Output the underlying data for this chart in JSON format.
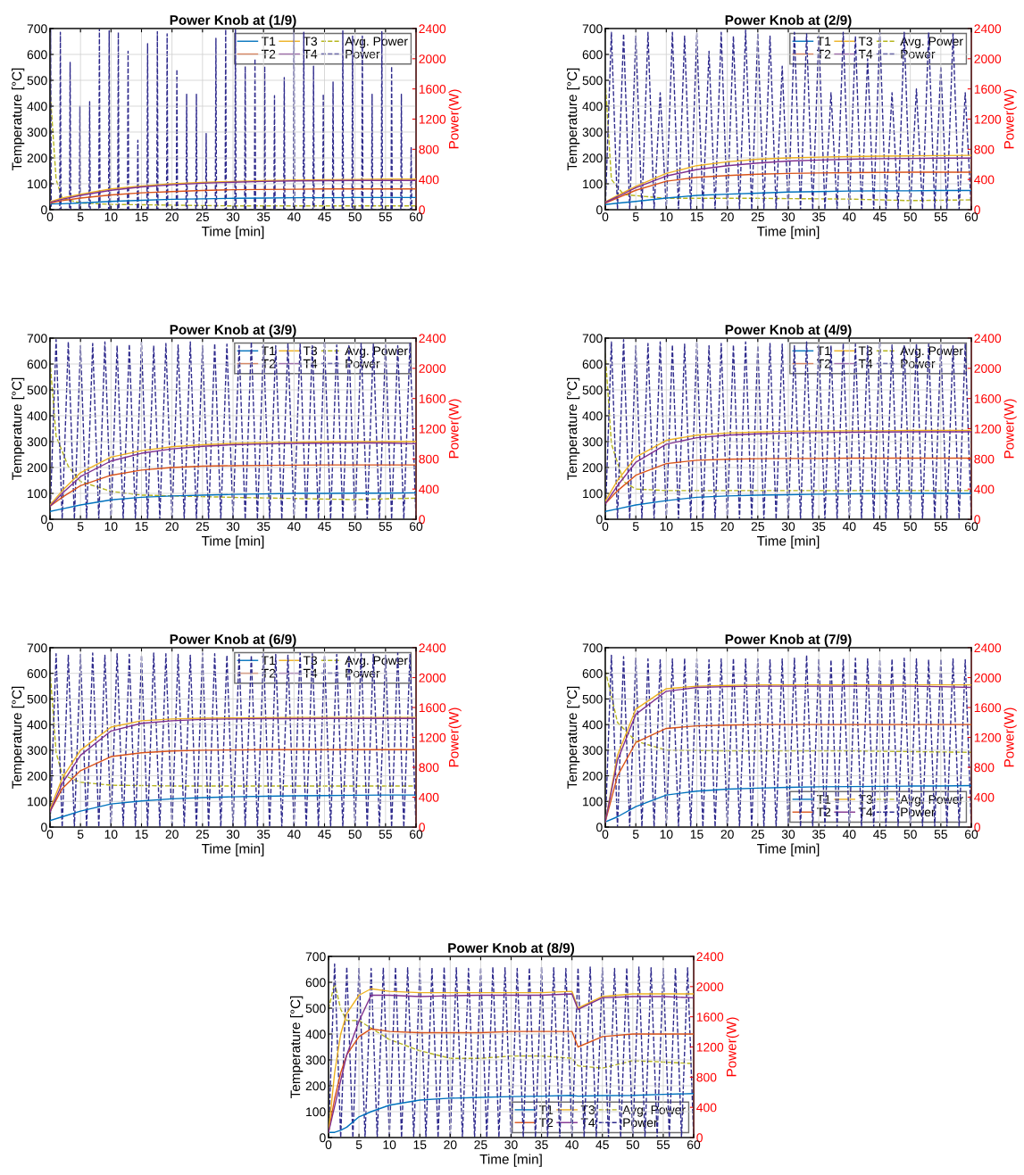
{
  "chart_data": [
    {
      "type": "line",
      "title": "Power Knob at (1/9)",
      "xlabel": "Time [min]",
      "ylabel": "Temperature [°C]",
      "y2label": "Power(W)",
      "xlim": [
        0,
        60
      ],
      "xticks": [
        0,
        5,
        10,
        15,
        20,
        25,
        30,
        35,
        40,
        45,
        50,
        55,
        60
      ],
      "ylim": [
        0,
        700
      ],
      "yticks": [
        0,
        100,
        200,
        300,
        400,
        500,
        600,
        700
      ],
      "y2lim": [
        0,
        2400
      ],
      "y2ticks": [
        0,
        400,
        800,
        1200,
        1600,
        2000,
        2400
      ],
      "grid": true,
      "legend": "top right",
      "x": [
        0,
        2,
        5,
        10,
        15,
        20,
        25,
        30,
        35,
        40,
        45,
        50,
        55,
        60
      ],
      "series": [
        {
          "name": "T1",
          "color": "#0072bd",
          "line_style": "solid",
          "values": [
            22,
            23,
            26,
            32,
            36,
            40,
            42,
            44,
            45,
            46,
            46,
            47,
            47,
            47
          ]
        },
        {
          "name": "T2",
          "color": "#d95319",
          "line_style": "solid",
          "values": [
            25,
            35,
            45,
            57,
            65,
            70,
            74,
            77,
            78,
            79,
            80,
            80,
            80,
            80
          ]
        },
        {
          "name": "T3",
          "color": "#edb120",
          "line_style": "solid",
          "values": [
            30,
            45,
            60,
            80,
            92,
            100,
            105,
            109,
            112,
            114,
            116,
            117,
            118,
            118
          ]
        },
        {
          "name": "T4",
          "color": "#7e2f8e",
          "line_style": "solid",
          "values": [
            28,
            40,
            55,
            75,
            88,
            96,
            102,
            106,
            109,
            111,
            112,
            113,
            113,
            113
          ]
        },
        {
          "name": "Avg. Power",
          "color": "#b5b51d",
          "line_style": "dashed",
          "axis": "y2",
          "x": [
            0,
            1,
            2,
            5,
            10,
            20,
            30,
            40,
            50,
            60
          ],
          "values": [
            1600,
            400,
            150,
            90,
            70,
            60,
            50,
            50,
            50,
            50
          ]
        },
        {
          "name": "Power",
          "color": "#2e2a8c",
          "line_style": "dashed",
          "axis": "y2",
          "x": [
            0,
            0.1,
            0.2,
            1.6,
            1.7,
            1.8,
            3.2,
            3.3,
            3.4,
            4.8,
            4.9,
            5,
            6.4,
            6.5,
            6.6,
            8,
            8.1,
            8.2,
            9.6,
            9.7,
            9.8,
            11.1,
            11.2,
            11.3,
            12.7,
            12.8,
            12.9,
            14.3,
            14.4,
            14.5,
            15.9,
            16,
            16.1,
            17.5,
            17.6,
            17.7,
            19.1,
            19.2,
            19.3,
            20.7,
            20.8,
            20.9,
            22.3,
            22.4,
            22.5,
            23.9,
            24,
            24.1,
            25.5,
            25.6,
            25.7,
            27.1,
            27.2,
            27.3,
            28.7,
            28.8,
            28.9,
            30.3,
            30.4,
            30.5,
            31.9,
            32,
            32.1,
            33.5,
            33.6,
            33.7,
            35.1,
            35.2,
            35.3,
            36.7,
            36.8,
            36.9,
            38.3,
            38.4,
            38.5,
            39.9,
            40,
            40.1,
            41.5,
            41.6,
            41.7,
            43.1,
            43.2,
            43.3,
            44.7,
            44.8,
            44.9,
            46.3,
            46.4,
            46.5,
            47.9,
            48,
            48.1,
            49.5,
            49.6,
            49.7,
            51.1,
            51.2,
            51.3,
            52.7,
            52.8,
            52.9,
            54.3,
            54.4,
            54.5,
            55.9,
            56,
            56.1,
            57.5,
            57.6,
            57.7,
            59.1,
            59.2,
            59.3
          ],
          "values": [
            0,
            2400,
            0,
            0,
            2350,
            0,
            0,
            1950,
            0,
            0,
            1370,
            0,
            0,
            1430,
            0,
            0,
            2400,
            0,
            0,
            2370,
            0,
            0,
            2350,
            0,
            0,
            2100,
            0,
            0,
            920,
            0,
            0,
            2200,
            0,
            0,
            2360,
            0,
            0,
            2330,
            0,
            0,
            1860,
            0,
            0,
            1530,
            0,
            0,
            1530,
            0,
            0,
            1010,
            0,
            0,
            2270,
            0,
            0,
            2390,
            0,
            0,
            2390,
            0,
            0,
            1900,
            0,
            0,
            2000,
            0,
            0,
            1900,
            0,
            0,
            1510,
            0,
            0,
            1750,
            0,
            0,
            2400,
            0,
            0,
            2350,
            0,
            0,
            1900,
            0,
            0,
            1530,
            0,
            0,
            1690,
            0,
            0,
            2370,
            0,
            0,
            2300,
            0,
            0,
            2300,
            0,
            0,
            1530,
            0,
            0,
            2360,
            0,
            0,
            1900,
            0,
            0,
            1530,
            0,
            0,
            830,
            0
          ]
        }
      ]
    },
    {
      "type": "line",
      "title": "Power Knob at (2/9)",
      "xlabel": "Time [min]",
      "ylabel": "Temperature [°C]",
      "y2label": "Power(W)",
      "xlim": [
        0,
        60
      ],
      "xticks": [
        0,
        5,
        10,
        15,
        20,
        25,
        30,
        35,
        40,
        45,
        50,
        55,
        60
      ],
      "ylim": [
        0,
        700
      ],
      "yticks": [
        0,
        100,
        200,
        300,
        400,
        500,
        600,
        700
      ],
      "y2lim": [
        0,
        2400
      ],
      "y2ticks": [
        0,
        400,
        800,
        1200,
        1600,
        2000,
        2400
      ],
      "grid": true,
      "legend": "top right",
      "x": [
        0,
        2,
        5,
        10,
        15,
        20,
        25,
        30,
        35,
        40,
        45,
        50,
        55,
        60
      ],
      "series": [
        {
          "name": "T1",
          "color": "#0072bd",
          "line_style": "solid",
          "values": [
            20,
            25,
            32,
            45,
            55,
            60,
            64,
            68,
            70,
            72,
            73,
            73,
            74,
            74
          ]
        },
        {
          "name": "T2",
          "color": "#d95319",
          "line_style": "solid",
          "values": [
            25,
            45,
            75,
            110,
            125,
            132,
            137,
            140,
            142,
            143,
            144,
            145,
            145,
            145
          ]
        },
        {
          "name": "T3",
          "color": "#edb120",
          "line_style": "solid",
          "values": [
            30,
            55,
            90,
            140,
            170,
            185,
            195,
            200,
            203,
            205,
            207,
            208,
            209,
            210
          ]
        },
        {
          "name": "T4",
          "color": "#7e2f8e",
          "line_style": "solid",
          "values": [
            28,
            50,
            85,
            130,
            155,
            170,
            180,
            188,
            192,
            195,
            197,
            198,
            199,
            199
          ]
        },
        {
          "name": "Avg. Power",
          "color": "#b5b51d",
          "line_style": "dashed",
          "axis": "y2",
          "x": [
            0,
            1,
            3,
            10,
            25,
            40,
            50,
            60
          ],
          "values": [
            1700,
            400,
            200,
            150,
            150,
            140,
            120,
            130
          ]
        },
        {
          "name": "Power",
          "color": "#2e2a8c",
          "line_style": "dashed",
          "axis": "y2",
          "x": [
            0,
            1,
            2,
            3,
            4,
            5,
            6,
            7,
            8,
            9,
            10,
            11,
            12,
            13,
            14,
            15,
            16,
            17,
            18,
            19,
            20,
            21,
            22,
            23,
            24,
            25,
            26,
            27,
            28,
            29,
            30,
            31,
            32,
            33,
            34,
            35,
            36,
            37,
            38,
            39,
            40,
            41,
            42,
            43,
            44,
            45,
            46,
            47,
            48,
            49,
            50,
            51,
            52,
            53,
            54,
            55,
            56,
            57,
            58,
            59,
            60
          ],
          "values": [
            0,
            2350,
            0,
            2330,
            0,
            2300,
            0,
            2350,
            0,
            1550,
            0,
            2350,
            0,
            2300,
            0,
            2340,
            0,
            2100,
            0,
            2350,
            0,
            2300,
            0,
            2380,
            0,
            2340,
            0,
            2300,
            0,
            1900,
            0,
            2350,
            0,
            2330,
            0,
            2300,
            0,
            1550,
            0,
            2350,
            0,
            2300,
            0,
            2000,
            0,
            2350,
            0,
            1550,
            0,
            2350,
            0,
            1600,
            0,
            2350,
            0,
            1900,
            0,
            2330,
            0,
            1550,
            0
          ]
        }
      ]
    },
    {
      "type": "line",
      "title": "Power Knob at (3/9)",
      "xlabel": "Time [min]",
      "ylabel": "Temperature [°C]",
      "y2label": "Power(W)",
      "xlim": [
        0,
        60
      ],
      "xticks": [
        0,
        5,
        10,
        15,
        20,
        25,
        30,
        35,
        40,
        45,
        50,
        55,
        60
      ],
      "ylim": [
        0,
        700
      ],
      "yticks": [
        0,
        100,
        200,
        300,
        400,
        500,
        600,
        700
      ],
      "y2lim": [
        0,
        2400
      ],
      "y2ticks": [
        0,
        400,
        800,
        1200,
        1600,
        2000,
        2400
      ],
      "grid": true,
      "legend": "top right",
      "x": [
        0,
        2,
        5,
        10,
        15,
        20,
        25,
        30,
        35,
        40,
        45,
        50,
        55,
        60
      ],
      "series": [
        {
          "name": "T1",
          "color": "#0072bd",
          "line_style": "solid",
          "values": [
            30,
            40,
            55,
            75,
            85,
            90,
            93,
            96,
            98,
            100,
            100,
            101,
            101,
            102
          ]
        },
        {
          "name": "T2",
          "color": "#d95319",
          "line_style": "solid",
          "values": [
            50,
            85,
            130,
            170,
            190,
            200,
            205,
            207,
            208,
            209,
            210,
            210,
            210,
            210
          ]
        },
        {
          "name": "T3",
          "color": "#edb120",
          "line_style": "solid",
          "values": [
            55,
            110,
            180,
            240,
            265,
            280,
            288,
            293,
            296,
            298,
            299,
            300,
            300,
            300
          ]
        },
        {
          "name": "T4",
          "color": "#7e2f8e",
          "line_style": "solid",
          "values": [
            50,
            100,
            165,
            225,
            255,
            272,
            282,
            288,
            291,
            293,
            294,
            295,
            295,
            292
          ]
        },
        {
          "name": "Avg. Power",
          "color": "#b5b51d",
          "line_style": "dashed",
          "axis": "y2",
          "x": [
            0,
            1,
            3,
            5,
            10,
            15,
            30,
            50,
            60
          ],
          "values": [
            2100,
            1100,
            700,
            500,
            370,
            320,
            290,
            260,
            280
          ]
        },
        {
          "name": "Power",
          "color": "#2e2a8c",
          "line_style": "dashed",
          "axis": "y2",
          "x": [
            0,
            1,
            2,
            3,
            4,
            5,
            6,
            7,
            8,
            9,
            10,
            11,
            12,
            13,
            14,
            15,
            16,
            17,
            18,
            19,
            20,
            21,
            22,
            23,
            24,
            25,
            26,
            27,
            28,
            29,
            30,
            31,
            32,
            33,
            34,
            35,
            36,
            37,
            38,
            39,
            40,
            41,
            42,
            43,
            44,
            45,
            46,
            47,
            48,
            49,
            50,
            51,
            52,
            53,
            54,
            55,
            56,
            57,
            58,
            59,
            60
          ],
          "values": [
            0,
            2380,
            0,
            2350,
            0,
            2300,
            0,
            2330,
            0,
            2350,
            0,
            2300,
            0,
            2320,
            0,
            2350,
            0,
            2300,
            0,
            2330,
            0,
            2310,
            0,
            2350,
            0,
            2300,
            0,
            2330,
            0,
            2320,
            0,
            2300,
            0,
            2350,
            0,
            2310,
            0,
            2300,
            0,
            2330,
            0,
            2320,
            0,
            2300,
            0,
            2350,
            0,
            2310,
            0,
            2300,
            0,
            2330,
            0,
            2320,
            0,
            2310,
            0,
            2300,
            0,
            2330,
            0
          ]
        }
      ]
    },
    {
      "type": "line",
      "title": "Power Knob at (4/9)",
      "xlabel": "Time [min]",
      "ylabel": "Temperature [°C]",
      "y2label": "Power(W)",
      "xlim": [
        0,
        60
      ],
      "xticks": [
        0,
        5,
        10,
        15,
        20,
        25,
        30,
        35,
        40,
        45,
        50,
        55,
        60
      ],
      "ylim": [
        0,
        700
      ],
      "yticks": [
        0,
        100,
        200,
        300,
        400,
        500,
        600,
        700
      ],
      "y2lim": [
        0,
        2400
      ],
      "y2ticks": [
        0,
        400,
        800,
        1200,
        1600,
        2000,
        2400
      ],
      "grid": true,
      "legend": "top right",
      "x": [
        0,
        2,
        5,
        10,
        15,
        20,
        25,
        30,
        35,
        40,
        45,
        50,
        55,
        60
      ],
      "series": [
        {
          "name": "T1",
          "color": "#0072bd",
          "line_style": "solid",
          "values": [
            30,
            40,
            55,
            72,
            85,
            90,
            93,
            95,
            97,
            98,
            99,
            100,
            100,
            100
          ]
        },
        {
          "name": "T2",
          "color": "#d95319",
          "line_style": "solid",
          "values": [
            60,
            110,
            170,
            215,
            228,
            232,
            234,
            235,
            235,
            236,
            236,
            236,
            236,
            236
          ]
        },
        {
          "name": "T3",
          "color": "#edb120",
          "line_style": "solid",
          "values": [
            70,
            150,
            240,
            305,
            325,
            333,
            337,
            340,
            341,
            342,
            342,
            343,
            343,
            343
          ]
        },
        {
          "name": "T4",
          "color": "#7e2f8e",
          "line_style": "solid",
          "values": [
            60,
            130,
            220,
            290,
            315,
            325,
            330,
            333,
            335,
            336,
            337,
            338,
            338,
            338
          ]
        },
        {
          "name": "Avg. Power",
          "color": "#b5b51d",
          "line_style": "dashed",
          "axis": "y2",
          "x": [
            0,
            1,
            3,
            5,
            10,
            20,
            40,
            60
          ],
          "values": [
            2200,
            1000,
            500,
            400,
            380,
            380,
            380,
            380
          ]
        },
        {
          "name": "Power",
          "color": "#2e2a8c",
          "line_style": "dashed",
          "axis": "y2",
          "x": [
            0,
            1,
            2,
            3,
            4,
            5,
            6,
            7,
            8,
            9,
            10,
            11,
            12,
            13,
            14,
            15,
            16,
            17,
            18,
            19,
            20,
            21,
            22,
            23,
            24,
            25,
            26,
            27,
            28,
            29,
            30,
            31,
            32,
            33,
            34,
            35,
            36,
            37,
            38,
            39,
            40,
            41,
            42,
            43,
            44,
            45,
            46,
            47,
            48,
            49,
            50,
            51,
            52,
            53,
            54,
            55,
            56,
            57,
            58,
            59,
            60
          ],
          "values": [
            0,
            2350,
            0,
            2380,
            0,
            2300,
            0,
            2330,
            0,
            2350,
            0,
            2310,
            0,
            2320,
            0,
            2350,
            0,
            2300,
            0,
            2330,
            0,
            2310,
            0,
            2350,
            0,
            2300,
            0,
            2330,
            0,
            2320,
            0,
            2300,
            0,
            2350,
            0,
            2310,
            0,
            2300,
            0,
            2330,
            0,
            2320,
            0,
            2300,
            0,
            2350,
            0,
            2310,
            0,
            2300,
            0,
            2330,
            0,
            2320,
            0,
            2310,
            0,
            2300,
            0,
            2330,
            0
          ]
        }
      ]
    },
    {
      "type": "line",
      "title": "Power Knob at (6/9)",
      "xlabel": "Time [min]",
      "ylabel": "Temperature [°C]",
      "y2label": "Power(W)",
      "xlim": [
        0,
        60
      ],
      "xticks": [
        0,
        5,
        10,
        15,
        20,
        25,
        30,
        35,
        40,
        45,
        50,
        55,
        60
      ],
      "ylim": [
        0,
        700
      ],
      "yticks": [
        0,
        100,
        200,
        300,
        400,
        500,
        600,
        700
      ],
      "y2lim": [
        0,
        2400
      ],
      "y2ticks": [
        0,
        400,
        800,
        1200,
        1600,
        2000,
        2400
      ],
      "grid": true,
      "legend": "top right",
      "x": [
        0,
        2,
        5,
        10,
        15,
        20,
        25,
        30,
        35,
        40,
        45,
        50,
        55,
        60
      ],
      "series": [
        {
          "name": "T1",
          "color": "#0072bd",
          "line_style": "solid",
          "values": [
            25,
            40,
            62,
            90,
            102,
            110,
            115,
            118,
            120,
            122,
            123,
            124,
            125,
            125
          ]
        },
        {
          "name": "T2",
          "color": "#d95319",
          "line_style": "solid",
          "values": [
            60,
            150,
            220,
            275,
            290,
            297,
            300,
            301,
            302,
            302,
            302,
            302,
            302,
            302
          ]
        },
        {
          "name": "T3",
          "color": "#edb120",
          "line_style": "solid",
          "values": [
            70,
            190,
            300,
            390,
            415,
            422,
            425,
            426,
            427,
            428,
            428,
            428,
            428,
            428
          ]
        },
        {
          "name": "T4",
          "color": "#7e2f8e",
          "line_style": "solid",
          "values": [
            60,
            170,
            280,
            375,
            405,
            415,
            420,
            422,
            423,
            423,
            424,
            424,
            424,
            424
          ]
        },
        {
          "name": "Avg. Power",
          "color": "#b5b51d",
          "line_style": "dashed",
          "axis": "y2",
          "x": [
            0,
            1,
            2,
            5,
            10,
            20,
            40,
            60
          ],
          "values": [
            2100,
            1000,
            700,
            600,
            560,
            550,
            550,
            550
          ]
        },
        {
          "name": "Power",
          "color": "#2e2a8c",
          "line_style": "dashed",
          "axis": "y2",
          "x": [
            0,
            1,
            2,
            3,
            4,
            5,
            6,
            7,
            8,
            9,
            10,
            11,
            12,
            13,
            14,
            15,
            16,
            17,
            18,
            19,
            20,
            21,
            22,
            23,
            24,
            25,
            26,
            27,
            28,
            29,
            30,
            31,
            32,
            33,
            34,
            35,
            36,
            37,
            38,
            39,
            40,
            41,
            42,
            43,
            44,
            45,
            46,
            47,
            48,
            49,
            50,
            51,
            52,
            53,
            54,
            55,
            56,
            57,
            58,
            59,
            60
          ],
          "values": [
            0,
            2320,
            0,
            2300,
            0,
            2310,
            0,
            2330,
            0,
            2300,
            0,
            2320,
            0,
            2310,
            0,
            2300,
            0,
            2330,
            0,
            2320,
            0,
            2310,
            0,
            2300,
            0,
            2330,
            0,
            2320,
            0,
            2300,
            0,
            2310,
            0,
            2300,
            0,
            2320,
            0,
            2310,
            0,
            2300,
            0,
            2330,
            0,
            2320,
            0,
            2300,
            0,
            2310,
            0,
            2300,
            0,
            2320,
            0,
            2310,
            0,
            2300,
            0,
            2330,
            0,
            2310,
            0
          ]
        }
      ]
    },
    {
      "type": "line",
      "title": "Power Knob at (7/9)",
      "xlabel": "Time [min]",
      "ylabel": "Temperature [°C]",
      "y2label": "Power(W)",
      "xlim": [
        0,
        60
      ],
      "xticks": [
        0,
        5,
        10,
        15,
        20,
        25,
        30,
        35,
        40,
        45,
        50,
        55,
        60
      ],
      "ylim": [
        0,
        700
      ],
      "yticks": [
        0,
        100,
        200,
        300,
        400,
        500,
        600,
        700
      ],
      "y2lim": [
        0,
        2400
      ],
      "y2ticks": [
        0,
        400,
        800,
        1200,
        1600,
        2000,
        2400
      ],
      "grid": true,
      "legend": "bottom right",
      "x": [
        0,
        2,
        5,
        10,
        15,
        20,
        25,
        30,
        35,
        40,
        45,
        50,
        55,
        60
      ],
      "series": [
        {
          "name": "T1",
          "color": "#0072bd",
          "line_style": "solid",
          "values": [
            20,
            40,
            80,
            125,
            140,
            148,
            152,
            155,
            157,
            158,
            159,
            160,
            160,
            162
          ]
        },
        {
          "name": "T2",
          "color": "#d95319",
          "line_style": "solid",
          "values": [
            20,
            200,
            330,
            385,
            395,
            398,
            400,
            400,
            400,
            400,
            400,
            400,
            400,
            400
          ]
        },
        {
          "name": "T3",
          "color": "#edb120",
          "line_style": "solid",
          "values": [
            20,
            280,
            460,
            540,
            550,
            553,
            555,
            555,
            555,
            555,
            555,
            555,
            555,
            555
          ]
        },
        {
          "name": "T4",
          "color": "#7e2f8e",
          "line_style": "solid",
          "values": [
            20,
            260,
            440,
            530,
            545,
            548,
            550,
            550,
            550,
            550,
            550,
            550,
            548,
            545
          ]
        },
        {
          "name": "Avg. Power",
          "color": "#b5b51d",
          "line_style": "dashed",
          "axis": "y2",
          "x": [
            0,
            2,
            5,
            10,
            20,
            40,
            60
          ],
          "values": [
            2100,
            1400,
            1150,
            1030,
            1020,
            1020,
            1000
          ]
        },
        {
          "name": "Power",
          "color": "#2e2a8c",
          "line_style": "dashed",
          "axis": "y2",
          "x": [
            0,
            1,
            2,
            3,
            4,
            5,
            6,
            7,
            8,
            9,
            10,
            11,
            12,
            13,
            14,
            15,
            16,
            17,
            18,
            19,
            20,
            21,
            22,
            23,
            24,
            25,
            26,
            27,
            28,
            29,
            30,
            31,
            32,
            33,
            34,
            35,
            36,
            37,
            38,
            39,
            40,
            41,
            42,
            43,
            44,
            45,
            46,
            47,
            48,
            49,
            50,
            51,
            52,
            53,
            54,
            55,
            56,
            57,
            58,
            59,
            60
          ],
          "values": [
            0,
            2300,
            0,
            2280,
            0,
            2260,
            0,
            2250,
            0,
            2240,
            0,
            2250,
            0,
            2260,
            0,
            2250,
            0,
            2240,
            0,
            2250,
            0,
            2260,
            0,
            2250,
            0,
            2250,
            0,
            2240,
            0,
            2250,
            0,
            2260,
            0,
            2300,
            0,
            2250,
            0,
            2240,
            0,
            2250,
            0,
            2260,
            0,
            2250,
            0,
            2240,
            0,
            2250,
            0,
            2260,
            0,
            2250,
            0,
            2240,
            0,
            2250,
            0,
            2250,
            0,
            2240,
            0
          ]
        }
      ]
    },
    {
      "type": "line",
      "title": "Power Knob at (8/9)",
      "xlabel": "Time [min]",
      "ylabel": "Temperature [°C]",
      "y2label": "Power(W)",
      "xlim": [
        0,
        60
      ],
      "xticks": [
        0,
        5,
        10,
        15,
        20,
        25,
        30,
        35,
        40,
        45,
        50,
        55,
        60
      ],
      "ylim": [
        0,
        700
      ],
      "yticks": [
        0,
        100,
        200,
        300,
        400,
        500,
        600,
        700
      ],
      "y2lim": [
        0,
        2400
      ],
      "y2ticks": [
        0,
        400,
        800,
        1200,
        1600,
        2000,
        2400
      ],
      "grid": true,
      "legend": "bottom right",
      "x": [
        0,
        1,
        2,
        3,
        5,
        7,
        10,
        15,
        20,
        25,
        30,
        35,
        40,
        41,
        45,
        50,
        55,
        60
      ],
      "series": [
        {
          "name": "T1",
          "color": "#0072bd",
          "line_style": "solid",
          "values": [
            20,
            20,
            28,
            40,
            80,
            100,
            125,
            145,
            152,
            155,
            158,
            160,
            163,
            160,
            162,
            163,
            167,
            170
          ]
        },
        {
          "name": "T2",
          "color": "#d95319",
          "line_style": "solid",
          "values": [
            20,
            150,
            250,
            320,
            390,
            420,
            410,
            405,
            405,
            405,
            410,
            410,
            410,
            350,
            390,
            400,
            400,
            400
          ]
        },
        {
          "name": "T3",
          "color": "#edb120",
          "line_style": "solid",
          "values": [
            20,
            250,
            400,
            480,
            550,
            575,
            565,
            560,
            560,
            560,
            560,
            560,
            565,
            500,
            545,
            555,
            555,
            555
          ]
        },
        {
          "name": "T4",
          "color": "#7e2f8e",
          "line_style": "solid",
          "values": [
            20,
            120,
            220,
            320,
            450,
            550,
            550,
            545,
            548,
            550,
            550,
            550,
            555,
            495,
            540,
            545,
            545,
            540
          ]
        },
        {
          "name": "Avg. Power",
          "color": "#b5b51d",
          "line_style": "dashed",
          "axis": "y2",
          "x": [
            0,
            1,
            2,
            3,
            5,
            7,
            10,
            15,
            20,
            25,
            30,
            35,
            40,
            41,
            45,
            50,
            55,
            60
          ],
          "values": [
            1700,
            2050,
            1700,
            1550,
            1550,
            1450,
            1300,
            1150,
            1050,
            1050,
            1080,
            1080,
            1050,
            950,
            920,
            1020,
            1000,
            980
          ]
        },
        {
          "name": "Power",
          "color": "#2e2a8c",
          "line_style": "dashed",
          "axis": "y2",
          "x": [
            0,
            1,
            2,
            3,
            4,
            5,
            6,
            7,
            8,
            9,
            10,
            11,
            12,
            13,
            14,
            15,
            16,
            17,
            18,
            19,
            20,
            21,
            22,
            23,
            24,
            25,
            26,
            27,
            28,
            29,
            30,
            31,
            32,
            33,
            34,
            35,
            36,
            37,
            38,
            39,
            40,
            41,
            42,
            43,
            44,
            45,
            46,
            47,
            48,
            49,
            50,
            51,
            52,
            53,
            54,
            55,
            56,
            57,
            58,
            59,
            60
          ],
          "values": [
            0,
            2300,
            0,
            2260,
            0,
            2250,
            0,
            2240,
            0,
            2250,
            0,
            2260,
            0,
            2250,
            0,
            2240,
            0,
            2250,
            0,
            2260,
            0,
            2250,
            0,
            2240,
            0,
            2250,
            0,
            2260,
            0,
            2250,
            0,
            2240,
            0,
            2250,
            0,
            2260,
            0,
            2250,
            0,
            2240,
            0,
            2250,
            0,
            2260,
            0,
            2250,
            0,
            2240,
            0,
            2250,
            0,
            2260,
            0,
            2250,
            0,
            2240,
            0,
            2250,
            0,
            2250,
            0
          ]
        }
      ]
    }
  ]
}
